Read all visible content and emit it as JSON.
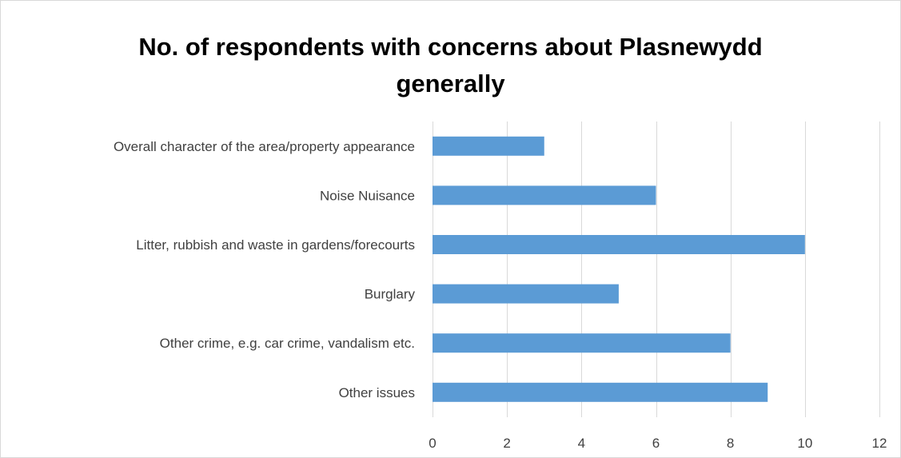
{
  "chart_data": {
    "type": "bar",
    "orientation": "horizontal",
    "title": "No. of  respondents with concerns about Plasnewydd\ngenerally",
    "categories": [
      "Overall character of the area/property appearance",
      "Noise Nuisance",
      "Litter, rubbish and waste in gardens/forecourts",
      "Burglary",
      "Other crime, e.g. car crime, vandalism etc.",
      "Other issues"
    ],
    "values": [
      3,
      6,
      10,
      5,
      8,
      9
    ],
    "xlim": [
      0,
      12
    ],
    "xticks": [
      0,
      2,
      4,
      6,
      8,
      10,
      12
    ],
    "grid": "vertical",
    "legend": "none",
    "bar_color": "#5b9bd5",
    "grid_color": "#d9d9d9"
  }
}
